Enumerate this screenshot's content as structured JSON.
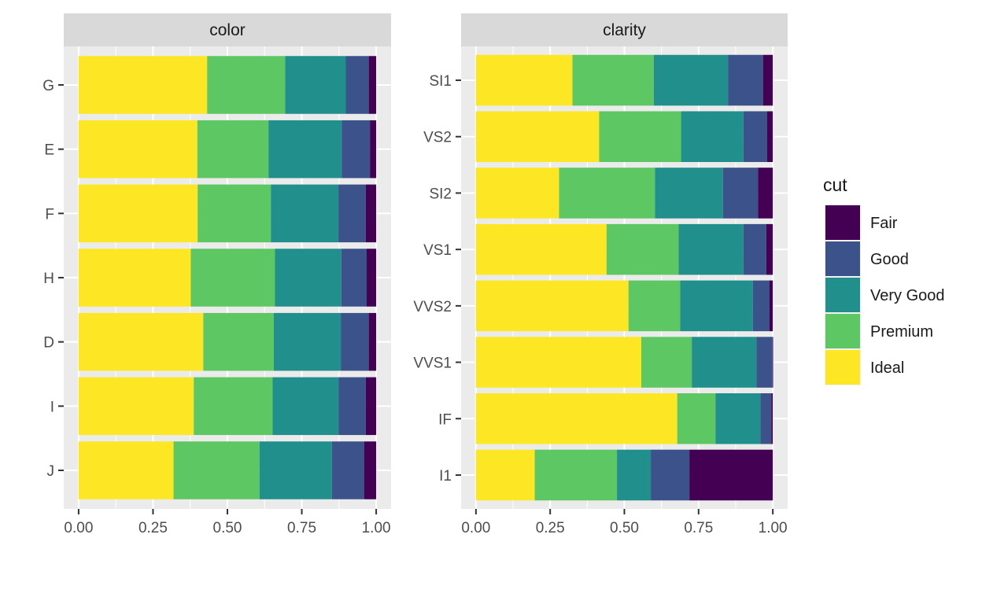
{
  "chart_data": [
    {
      "type": "bar",
      "orientation": "horizontal",
      "stacked": "fill",
      "facet_label": "color",
      "categories": [
        "G",
        "E",
        "F",
        "H",
        "D",
        "I",
        "J"
      ],
      "series": [
        {
          "name": "Ideal",
          "values": [
            0.432,
            0.399,
            0.4,
            0.377,
            0.419,
            0.387,
            0.319
          ]
        },
        {
          "name": "Premium",
          "values": [
            0.262,
            0.239,
            0.246,
            0.283,
            0.237,
            0.265,
            0.289
          ]
        },
        {
          "name": "Very Good",
          "values": [
            0.204,
            0.246,
            0.227,
            0.223,
            0.225,
            0.222,
            0.243
          ]
        },
        {
          "name": "Good",
          "values": [
            0.077,
            0.095,
            0.092,
            0.085,
            0.094,
            0.091,
            0.109
          ]
        },
        {
          "name": "Fair",
          "values": [
            0.025,
            0.021,
            0.035,
            0.032,
            0.025,
            0.035,
            0.04
          ]
        }
      ],
      "xlim": [
        0,
        1
      ],
      "ticks": [
        "0.00",
        "0.25",
        "0.50",
        "0.75",
        "1.00"
      ],
      "grid": true
    },
    {
      "type": "bar",
      "orientation": "horizontal",
      "stacked": "fill",
      "facet_label": "clarity",
      "categories": [
        "SI1",
        "VS2",
        "SI2",
        "VS1",
        "VVS2",
        "VVS1",
        "IF",
        "I1"
      ],
      "series": [
        {
          "name": "Ideal",
          "values": [
            0.325,
            0.415,
            0.28,
            0.44,
            0.514,
            0.557,
            0.678,
            0.198
          ]
        },
        {
          "name": "Premium",
          "values": [
            0.274,
            0.276,
            0.323,
            0.243,
            0.174,
            0.17,
            0.129,
            0.277
          ]
        },
        {
          "name": "Very Good",
          "values": [
            0.25,
            0.21,
            0.229,
            0.218,
            0.245,
            0.218,
            0.151,
            0.114
          ]
        },
        {
          "name": "Good",
          "values": [
            0.118,
            0.08,
            0.118,
            0.077,
            0.056,
            0.054,
            0.037,
            0.13
          ]
        },
        {
          "name": "Fair",
          "values": [
            0.033,
            0.019,
            0.05,
            0.022,
            0.011,
            0.002,
            0.005,
            0.281
          ]
        }
      ],
      "xlim": [
        0,
        1
      ],
      "ticks": [
        "0.00",
        "0.25",
        "0.50",
        "0.75",
        "1.00"
      ],
      "grid": true
    }
  ],
  "legend": {
    "title": "cut",
    "placement": "right",
    "items": [
      {
        "label": "Fair",
        "color": "#440154"
      },
      {
        "label": "Good",
        "color": "#3B528B"
      },
      {
        "label": "Very Good",
        "color": "#21908C"
      },
      {
        "label": "Premium",
        "color": "#5DC863"
      },
      {
        "label": "Ideal",
        "color": "#FDE725"
      }
    ]
  },
  "colors": {
    "panel_bg": "#EBEBEB",
    "strip_bg": "#D9D9D9",
    "grid_major": "#FFFFFF",
    "text": "#1A1A1A",
    "tick_text": "#4D4D4D",
    "tick_mark": "#333333"
  }
}
